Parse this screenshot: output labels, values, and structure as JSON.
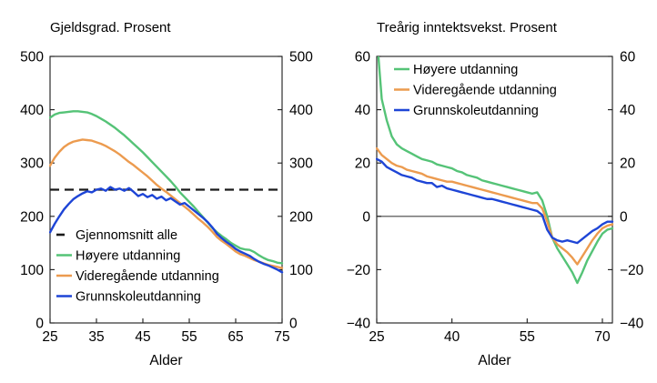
{
  "page": {
    "background": "#ffffff",
    "text_color": "#000000",
    "axis_color": "#1a1a1a"
  },
  "chart_data": [
    {
      "type": "line",
      "title": "Gjeldsgrad. Prosent",
      "xlabel": "Alder",
      "xlim": [
        25,
        75
      ],
      "ylim": [
        0,
        500
      ],
      "xticks": [
        25,
        35,
        45,
        55,
        65,
        75
      ],
      "xtick_labels": [
        "25",
        "35",
        "45",
        "55",
        "65",
        "75"
      ],
      "yticks": [
        0,
        100,
        200,
        300,
        400,
        500
      ],
      "ytick_labels": [
        "0",
        "100",
        "200",
        "300",
        "400",
        "500"
      ],
      "grid": false,
      "y_axis_labels_both_sides": true,
      "legend_position": "lower-left-inside",
      "ref_lines": [
        {
          "label": "Gjennomsnitt alle",
          "value": 250,
          "color": "#1a1a1a",
          "style": "dashed"
        }
      ],
      "x": [
        25,
        26,
        27,
        28,
        29,
        30,
        31,
        32,
        33,
        34,
        35,
        36,
        37,
        38,
        39,
        40,
        41,
        42,
        43,
        44,
        45,
        46,
        47,
        48,
        49,
        50,
        51,
        52,
        53,
        54,
        55,
        56,
        57,
        58,
        59,
        60,
        61,
        62,
        63,
        64,
        65,
        66,
        67,
        68,
        69,
        70,
        71,
        72,
        73,
        74,
        75
      ],
      "series": [
        {
          "name": "Høyere utdanning",
          "color": "#55c377",
          "values": [
            385,
            391,
            394,
            395,
            396,
            397,
            397,
            396,
            395,
            392,
            388,
            383,
            378,
            372,
            366,
            359,
            352,
            344,
            336,
            328,
            320,
            311,
            302,
            293,
            284,
            275,
            266,
            256,
            245,
            236,
            227,
            218,
            208,
            198,
            188,
            178,
            170,
            163,
            157,
            150,
            145,
            140,
            138,
            137,
            133,
            127,
            122,
            118,
            116,
            113,
            112
          ]
        },
        {
          "name": "Videregående utdanning",
          "color": "#ec9b4f",
          "values": [
            295,
            310,
            321,
            330,
            336,
            340,
            342,
            344,
            343,
            342,
            339,
            336,
            332,
            327,
            322,
            316,
            309,
            302,
            296,
            289,
            282,
            275,
            267,
            259,
            252,
            246,
            239,
            232,
            225,
            218,
            211,
            203,
            195,
            188,
            180,
            171,
            161,
            154,
            148,
            141,
            134,
            129,
            126,
            122,
            118,
            115,
            112,
            109,
            107,
            105,
            103
          ]
        },
        {
          "name": "Grunnskoleutdanning",
          "color": "#1e45d6",
          "values": [
            170,
            186,
            200,
            213,
            223,
            232,
            238,
            243,
            247,
            245,
            250,
            252,
            248,
            255,
            250,
            252,
            248,
            253,
            246,
            238,
            242,
            236,
            240,
            233,
            237,
            230,
            234,
            228,
            222,
            225,
            218,
            211,
            204,
            197,
            189,
            179,
            167,
            159,
            152,
            146,
            139,
            134,
            130,
            126,
            120,
            115,
            111,
            108,
            104,
            100,
            95
          ]
        }
      ]
    },
    {
      "type": "line",
      "title": "Treårig inntektsvekst. Prosent",
      "xlabel": "Alder",
      "xlim": [
        25,
        72
      ],
      "ylim": [
        -40,
        60
      ],
      "xticks": [
        25,
        40,
        55,
        70
      ],
      "xtick_labels": [
        "25",
        "40",
        "55",
        "70"
      ],
      "yticks": [
        -40,
        -20,
        0,
        20,
        40,
        60
      ],
      "ytick_labels": [
        "−40",
        "−20",
        "0",
        "20",
        "40",
        "60"
      ],
      "grid": false,
      "y_axis_labels_both_sides": true,
      "zero_line": {
        "value": 0,
        "color": "#454545"
      },
      "legend_position": "upper-left-inside",
      "ref_lines": [],
      "x": [
        25,
        26,
        27,
        28,
        29,
        30,
        31,
        32,
        33,
        34,
        35,
        36,
        37,
        38,
        39,
        40,
        41,
        42,
        43,
        44,
        45,
        46,
        47,
        48,
        49,
        50,
        51,
        52,
        53,
        54,
        55,
        56,
        57,
        58,
        59,
        60,
        61,
        62,
        63,
        64,
        65,
        66,
        67,
        68,
        69,
        70,
        71,
        72
      ],
      "series": [
        {
          "name": "Høyere utdanning",
          "color": "#55c377",
          "values": [
            68,
            44,
            36,
            30,
            27,
            25.5,
            24.5,
            23.5,
            22.5,
            21.5,
            21,
            20.5,
            19.5,
            19,
            18.5,
            18,
            17,
            16.5,
            15.5,
            15,
            14.5,
            13.5,
            13,
            12.5,
            12,
            11.5,
            11,
            10.5,
            10,
            9.5,
            9,
            8.5,
            9,
            6,
            0,
            -8,
            -12,
            -15,
            -18,
            -21,
            -25,
            -21,
            -16.5,
            -13,
            -9.5,
            -6.5,
            -5,
            -4.5
          ]
        },
        {
          "name": "Videregående utdanning",
          "color": "#ec9b4f",
          "values": [
            25.5,
            23,
            21.5,
            20,
            19,
            18.5,
            17.5,
            17,
            16.5,
            16,
            15,
            14.5,
            14,
            13.5,
            13,
            13,
            12.5,
            12,
            11.5,
            11,
            10.5,
            10,
            9.5,
            9,
            8.5,
            8,
            7.5,
            7,
            6.5,
            6,
            5.5,
            5,
            5,
            3,
            -2,
            -8,
            -10.5,
            -12,
            -13.5,
            -15.5,
            -18,
            -15,
            -12,
            -9,
            -6.5,
            -4.5,
            -3.5,
            -3
          ]
        },
        {
          "name": "Grunnskoleutdanning",
          "color": "#1e45d6",
          "values": [
            21.5,
            20.5,
            18.5,
            17.5,
            16.5,
            15.5,
            15,
            14.5,
            13.5,
            13,
            12.5,
            12.5,
            11,
            11.5,
            10.5,
            10,
            9.5,
            9,
            8.5,
            8,
            7.5,
            7,
            6.5,
            6.5,
            6,
            5.5,
            5,
            4.5,
            4,
            3.5,
            3,
            2.5,
            2,
            0.5,
            -5,
            -8,
            -9,
            -9.5,
            -9,
            -9.5,
            -10,
            -8.5,
            -7,
            -5.5,
            -4.5,
            -3,
            -2,
            -2
          ]
        }
      ]
    }
  ]
}
